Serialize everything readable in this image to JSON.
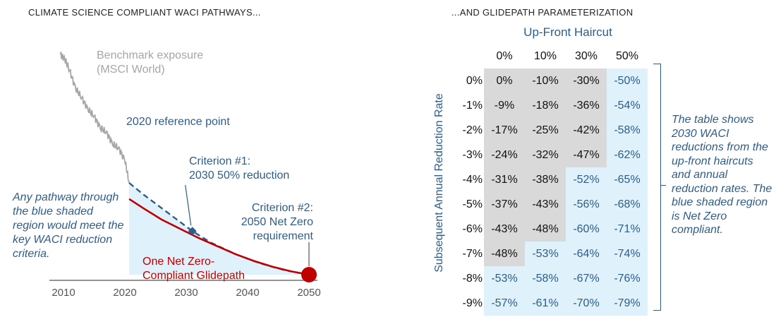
{
  "left_title": "CLIMATE SCIENCE COMPLIANT WACI PATHWAYS...",
  "right_title": "...AND GLIDEPATH PARAMETERIZATION",
  "left_note": "Any pathway through the blue shaded region would meet the key WACI reduction criteria.",
  "right_note": "The table shows 2030 WACI reductions from the up-front haircuts and annual reduction rates. The blue shaded region is Net Zero compliant.",
  "colors": {
    "benchmark": "#a6a6a6",
    "glidepath": "#c00000",
    "dashed": "#2e5d8a",
    "shade": "#dff1fa",
    "gray_cell": "#d9d9d9",
    "blue_text": "#2e5d8a"
  },
  "chart_data": {
    "type": "line",
    "x_ticks": [
      "2010",
      "2020",
      "2030",
      "2040",
      "2050"
    ],
    "xlim": [
      2006.7,
      2052
    ],
    "ylim": [
      0,
      100
    ],
    "annotations": {
      "benchmark": "Benchmark exposure\n(MSCI World)",
      "reference": "2020 reference point",
      "criterion1": "Criterion #1:\n2030 50% reduction",
      "criterion2": "Criterion #2:\n2050 Net Zero\nrequirement",
      "glidepath": "One Net Zero-\nCompliant Glidepath"
    },
    "series": [
      {
        "name": "Benchmark exposure (MSCI World)",
        "x": [
          2009.5,
          2010.2,
          2011,
          2012,
          2013,
          2014,
          2015,
          2016,
          2017,
          2018,
          2019,
          2020,
          2020.7
        ],
        "y": [
          96,
          94,
          89,
          81,
          77,
          72,
          69,
          64,
          62,
          57,
          55,
          50,
          40
        ]
      },
      {
        "name": "2030 50% reduction",
        "x": [
          2020.7,
          2023,
          2026,
          2029,
          2031,
          2034,
          2038,
          2042,
          2046,
          2050
        ],
        "y": [
          40,
          35,
          29,
          23,
          19,
          14,
          9,
          5,
          2,
          0
        ]
      },
      {
        "name": "One Net Zero-Compliant Glidepath",
        "x": [
          2020.7,
          2023,
          2026,
          2029,
          2032,
          2035,
          2038,
          2041,
          2044,
          2047,
          2050
        ],
        "y": [
          33,
          29,
          24,
          20,
          16,
          12.5,
          9,
          6,
          3.5,
          1.5,
          0
        ]
      }
    ],
    "markers": [
      {
        "x": 2031,
        "y": 19
      },
      {
        "x": 2050,
        "y": 0
      }
    ]
  },
  "table": {
    "header": "Up-Front Haircut",
    "row_axis": "Subsequent Annual Reduction Rate",
    "columns": [
      "0%",
      "10%",
      "30%",
      "50%"
    ],
    "rows": [
      {
        "label": "0%",
        "cells": [
          "0%",
          "-10%",
          "-30%",
          "-50%"
        ],
        "blue": [
          false,
          false,
          false,
          true
        ]
      },
      {
        "label": "-1%",
        "cells": [
          "-9%",
          "-18%",
          "-36%",
          "-54%"
        ],
        "blue": [
          false,
          false,
          false,
          true
        ]
      },
      {
        "label": "-2%",
        "cells": [
          "-17%",
          "-25%",
          "-42%",
          "-58%"
        ],
        "blue": [
          false,
          false,
          false,
          true
        ]
      },
      {
        "label": "-3%",
        "cells": [
          "-24%",
          "-32%",
          "-47%",
          "-62%"
        ],
        "blue": [
          false,
          false,
          false,
          true
        ]
      },
      {
        "label": "-4%",
        "cells": [
          "-31%",
          "-38%",
          "-52%",
          "-65%"
        ],
        "blue": [
          false,
          false,
          true,
          true
        ]
      },
      {
        "label": "-5%",
        "cells": [
          "-37%",
          "-43%",
          "-56%",
          "-68%"
        ],
        "blue": [
          false,
          false,
          true,
          true
        ]
      },
      {
        "label": "-6%",
        "cells": [
          "-43%",
          "-48%",
          "-60%",
          "-71%"
        ],
        "blue": [
          false,
          false,
          true,
          true
        ]
      },
      {
        "label": "-7%",
        "cells": [
          "-48%",
          "-53%",
          "-64%",
          "-74%"
        ],
        "blue": [
          false,
          true,
          true,
          true
        ]
      },
      {
        "label": "-8%",
        "cells": [
          "-53%",
          "-58%",
          "-67%",
          "-76%"
        ],
        "blue": [
          true,
          true,
          true,
          true
        ]
      },
      {
        "label": "-9%",
        "cells": [
          "-57%",
          "-61%",
          "-70%",
          "-79%"
        ],
        "blue": [
          true,
          true,
          true,
          true
        ]
      }
    ]
  }
}
